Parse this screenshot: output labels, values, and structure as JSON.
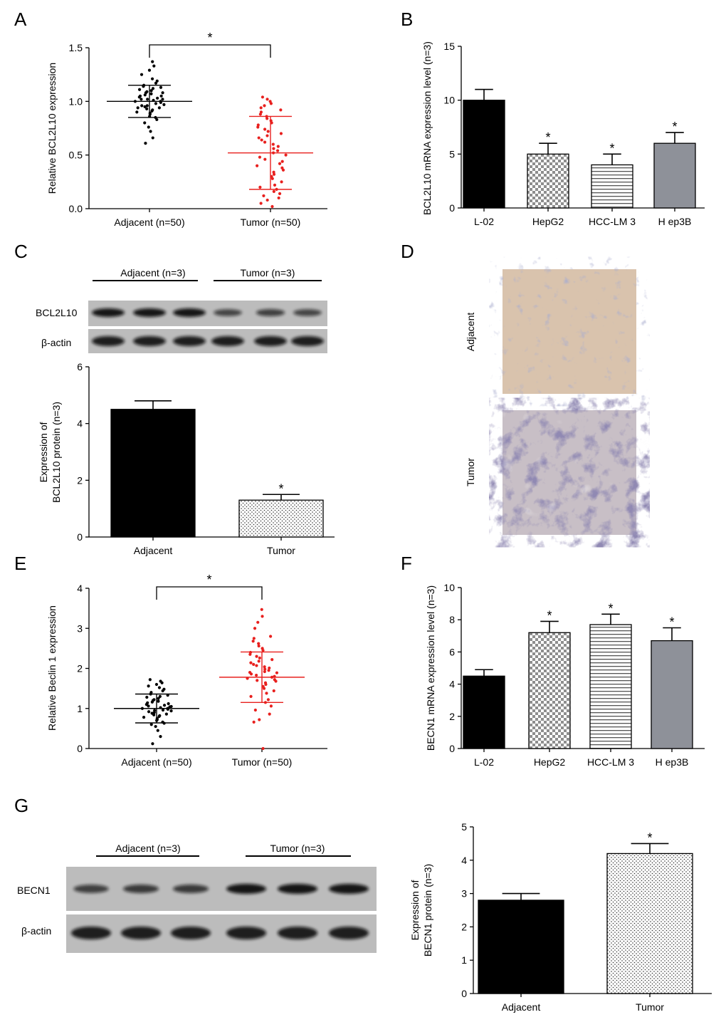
{
  "panels": {
    "A": "A",
    "B": "B",
    "C": "C",
    "D": "D",
    "E": "E",
    "F": "F",
    "G": "G"
  },
  "colors": {
    "black": "#000000",
    "red": "#e8201e",
    "gray_bar": "#8e9199",
    "blot_bg": "#bcbcbc",
    "ihc_adjacent": "#d9c3ad",
    "ihc_tumor": "#c8bfc6"
  },
  "blots": {
    "C": {
      "header_adjacent": "Adjacent (n=3)",
      "header_tumor": "Tumor (n=3)",
      "row1": "BCL2L10",
      "row2": "β-actin",
      "row1_band_intensity": [
        1,
        1,
        1,
        0.55,
        0.6,
        0.55
      ],
      "row2_band_intensity": [
        1,
        1,
        1,
        1,
        1,
        1
      ]
    },
    "G": {
      "header_adjacent": "Adjacent (n=3)",
      "header_tumor": "Tumor (n=3)",
      "row1": "BECN1",
      "row2": "β-actin",
      "row1_band_intensity": [
        0.6,
        0.65,
        0.65,
        1,
        1,
        1
      ],
      "row2_band_intensity": [
        1,
        1,
        1,
        1,
        1,
        1
      ]
    }
  },
  "ihc": {
    "adjacent_label": "Adjacent",
    "tumor_label": "Tumor",
    "adjacent_icon": "ihc-stained-tissue-image",
    "tumor_icon": "ihc-stained-tissue-image"
  },
  "chart_data": [
    {
      "id": "A",
      "type": "scatter",
      "categories": [
        "Adjacent (n=50)",
        "Tumor (n=50)"
      ],
      "ylabel": "Relative BCL2L10 expression",
      "ylim": [
        0,
        1.5
      ],
      "yticks": [
        "0.0",
        "0.5",
        "1.0",
        "1.5"
      ],
      "significance": "*",
      "series": [
        {
          "category": "Adjacent (n=50)",
          "color": "#000000",
          "mean": 1.0,
          "sd_low": 0.85,
          "sd_high": 1.15,
          "values": [
            0.61,
            0.66,
            0.72,
            0.76,
            0.8,
            0.83,
            0.85,
            0.86,
            0.88,
            0.89,
            0.9,
            0.91,
            0.92,
            0.93,
            0.94,
            0.95,
            0.96,
            0.96,
            0.97,
            0.98,
            0.99,
            1.0,
            1.0,
            1.01,
            1.02,
            1.02,
            1.03,
            1.04,
            1.05,
            1.05,
            1.06,
            1.07,
            1.08,
            1.09,
            1.1,
            1.11,
            1.12,
            1.13,
            1.14,
            1.15,
            1.17,
            1.19,
            1.21,
            1.25,
            1.29,
            1.33,
            1.37,
            0.94,
            1.02,
            1.08
          ]
        },
        {
          "category": "Tumor (n=50)",
          "color": "#e8201e",
          "mean": 0.52,
          "sd_low": 0.18,
          "sd_high": 0.86,
          "values": [
            0.02,
            0.05,
            0.08,
            0.1,
            0.12,
            0.14,
            0.16,
            0.18,
            0.2,
            0.22,
            0.25,
            0.28,
            0.3,
            0.32,
            0.34,
            0.36,
            0.38,
            0.4,
            0.42,
            0.44,
            0.46,
            0.48,
            0.5,
            0.52,
            0.54,
            0.56,
            0.58,
            0.6,
            0.62,
            0.64,
            0.66,
            0.68,
            0.7,
            0.72,
            0.74,
            0.76,
            0.78,
            0.8,
            0.82,
            0.84,
            0.86,
            0.88,
            0.9,
            0.92,
            0.94,
            0.96,
            0.98,
            1.0,
            1.02,
            1.04
          ]
        }
      ]
    },
    {
      "id": "B",
      "type": "bar",
      "categories": [
        "L-02",
        "HepG2",
        "HCC-LM  3",
        "H ep3B"
      ],
      "values": [
        10,
        5,
        4,
        6
      ],
      "errors": [
        1,
        1,
        1,
        1
      ],
      "significance": [
        "",
        "*",
        "*",
        "*"
      ],
      "patterns": [
        "solid-black",
        "checker",
        "hlines",
        "solid-gray"
      ],
      "ylabel": "BCL2L10 mRNA expression level (n=3)",
      "ylim": [
        0,
        15
      ],
      "yticks": [
        "0",
        "5",
        "10",
        "15"
      ]
    },
    {
      "id": "C",
      "type": "bar",
      "categories": [
        "Adjacent",
        "Tumor"
      ],
      "values": [
        4.5,
        1.3
      ],
      "errors": [
        0.3,
        0.2
      ],
      "significance": [
        "",
        "*"
      ],
      "patterns": [
        "solid-black",
        "dots"
      ],
      "ylabel": [
        "Expression of",
        "BCL2L10 protein (n=3)"
      ],
      "ylim": [
        0,
        6
      ],
      "yticks": [
        "0",
        "2",
        "4",
        "6"
      ]
    },
    {
      "id": "E",
      "type": "scatter",
      "categories": [
        "Adjacent (n=50)",
        "Tumor (n=50)"
      ],
      "ylabel": "Relative Beclin 1 expression",
      "ylim": [
        0,
        4
      ],
      "yticks": [
        "0",
        "1",
        "2",
        "3",
        "4"
      ],
      "significance": "*",
      "series": [
        {
          "category": "Adjacent (n=50)",
          "color": "#000000",
          "mean": 1.0,
          "sd_low": 0.64,
          "sd_high": 1.36,
          "values": [
            0.12,
            0.3,
            0.45,
            0.55,
            0.6,
            0.63,
            0.66,
            0.7,
            0.72,
            0.75,
            0.78,
            0.8,
            0.82,
            0.84,
            0.86,
            0.88,
            0.9,
            0.92,
            0.94,
            0.96,
            0.98,
            1.0,
            1.0,
            1.02,
            1.04,
            1.06,
            1.08,
            1.1,
            1.12,
            1.14,
            1.16,
            1.18,
            1.2,
            1.22,
            1.25,
            1.28,
            1.3,
            1.33,
            1.36,
            1.4,
            1.44,
            1.48,
            1.52,
            1.56,
            1.6,
            1.64,
            1.68,
            1.72,
            0.95,
            1.05
          ]
        },
        {
          "category": "Tumor (n=50)",
          "color": "#e8201e",
          "mean": 1.78,
          "sd_low": 1.15,
          "sd_high": 2.41,
          "values": [
            0.0,
            0.66,
            0.72,
            0.86,
            0.96,
            1.06,
            1.15,
            1.22,
            1.3,
            1.38,
            1.44,
            1.5,
            1.55,
            1.6,
            1.64,
            1.68,
            1.72,
            1.75,
            1.78,
            1.8,
            1.83,
            1.86,
            1.89,
            1.92,
            1.95,
            1.98,
            2.01,
            2.04,
            2.07,
            2.1,
            2.14,
            2.18,
            2.22,
            2.26,
            2.3,
            2.35,
            2.4,
            2.45,
            2.5,
            2.56,
            2.62,
            2.68,
            2.75,
            2.8,
            3.0,
            3.15,
            3.3,
            3.47,
            1.7,
            1.9
          ]
        }
      ]
    },
    {
      "id": "F",
      "type": "bar",
      "categories": [
        "L-02",
        "HepG2",
        "HCC-LM  3",
        "H ep3B"
      ],
      "values": [
        4.5,
        7.2,
        7.7,
        6.7
      ],
      "errors": [
        0.4,
        0.7,
        0.65,
        0.8
      ],
      "significance": [
        "",
        "*",
        "*",
        "*"
      ],
      "patterns": [
        "solid-black",
        "checker",
        "hlines",
        "solid-gray"
      ],
      "ylabel": "BECN1 mRNA expression level (n=3)",
      "ylim": [
        0,
        10
      ],
      "yticks": [
        "0",
        "2",
        "4",
        "6",
        "8",
        "10"
      ]
    },
    {
      "id": "G",
      "type": "bar",
      "categories": [
        "Adjacent",
        "Tumor"
      ],
      "values": [
        2.8,
        4.2
      ],
      "errors": [
        0.2,
        0.3
      ],
      "significance": [
        "",
        "*"
      ],
      "patterns": [
        "solid-black",
        "dots"
      ],
      "ylabel": [
        "Expression of",
        "BECN1 protein (n=3)"
      ],
      "ylim": [
        0,
        5
      ],
      "yticks": [
        "0",
        "1",
        "2",
        "3",
        "4",
        "5"
      ]
    }
  ]
}
